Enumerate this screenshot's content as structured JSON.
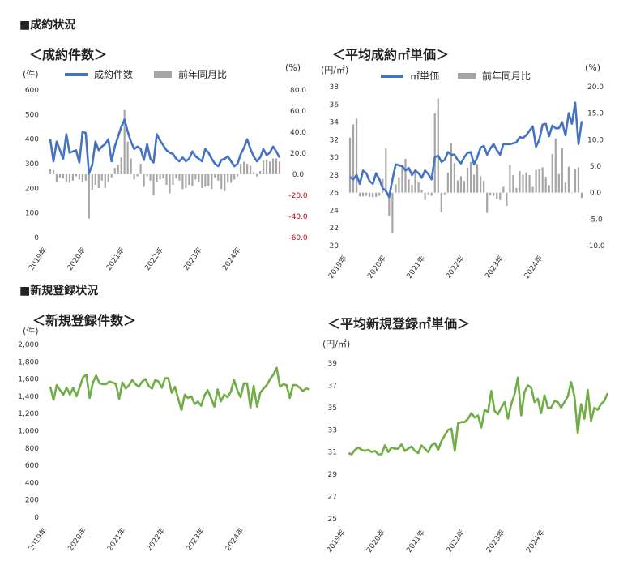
{
  "sections": {
    "s1": "■成約状況",
    "s2": "■新規登録状況"
  },
  "years": [
    "2019年",
    "2020年",
    "2021年",
    "2022年",
    "2023年",
    "2024年"
  ],
  "charts": [
    {
      "title": "＜成約件数＞",
      "unit_left": "(件)",
      "unit_right": "(%)",
      "legend_line": "成約件数",
      "legend_bar": "前年同月比",
      "left_ticks": [
        "0",
        "100",
        "200",
        "300",
        "400",
        "500",
        "600"
      ],
      "right_ticks": [
        "-60.0",
        "-40.0",
        "-20.0",
        "0.0",
        "20.0",
        "40.0",
        "60.0",
        "80.0"
      ]
    },
    {
      "title": "＜平均成約㎡単価＞",
      "unit_left": "(円/㎡)",
      "unit_right": "(%)",
      "legend_line": "㎡単価",
      "legend_bar": "前年同月比",
      "left_ticks": [
        "20",
        "22",
        "24",
        "26",
        "28",
        "30",
        "32",
        "34",
        "36",
        "38"
      ],
      "right_ticks": [
        "-10.0",
        "-5.0",
        "0.0",
        "5.0",
        "10.0",
        "15.0",
        "20.0"
      ]
    },
    {
      "title": "＜新規登録件数＞",
      "unit_left": "(件)",
      "left_ticks": [
        "0",
        "200",
        "400",
        "600",
        "800",
        "1,000",
        "1,200",
        "1,400",
        "1,600",
        "1,800",
        "2,000"
      ]
    },
    {
      "title": "＜平均新規登録㎡単価＞",
      "unit_left": "(円/㎡)",
      "left_ticks": [
        "25",
        "27",
        "29",
        "31",
        "33",
        "35",
        "37",
        "39"
      ]
    }
  ],
  "chart_data": [
    {
      "type": "bar",
      "title": "成約件数",
      "colors": {
        "line": "#4472c4",
        "bar": "#a6a6a6"
      },
      "ylim": [
        0,
        600
      ],
      "y2lim": [
        -60,
        80
      ],
      "series": [
        {
          "name": "成約件数",
          "axis": "left",
          "type": "line",
          "values": [
            400,
            310,
            390,
            355,
            320,
            420,
            345,
            350,
            355,
            305,
            430,
            425,
            260,
            295,
            390,
            355,
            370,
            380,
            400,
            310,
            370,
            410,
            450,
            480,
            430,
            390,
            360,
            370,
            360,
            315,
            380,
            320,
            305,
            420,
            395,
            375,
            355,
            345,
            340,
            320,
            310,
            325,
            310,
            320,
            350,
            330,
            320,
            310,
            360,
            345,
            320,
            300,
            290,
            315,
            320,
            330,
            310,
            290,
            300,
            340,
            365,
            400,
            360,
            330,
            310,
            325,
            360,
            335,
            345,
            370,
            350,
            325
          ]
        },
        {
          "name": "前年同月比",
          "axis": "right",
          "type": "bar",
          "values": [
            5,
            4,
            -7,
            -3,
            -4,
            -7,
            -8,
            -6,
            -2,
            -5,
            -7,
            -6,
            -42,
            -15,
            -10,
            -13,
            -6,
            -13,
            -7,
            -3,
            6,
            9,
            16,
            61,
            31,
            15,
            -5,
            -2,
            10,
            -12,
            -2,
            -6,
            -20,
            -7,
            -5,
            -4,
            -10,
            -18,
            -10,
            -4,
            -6,
            -14,
            -13,
            -10,
            -11,
            -5,
            -7,
            -13,
            -12,
            -11,
            -14,
            -3,
            -6,
            -14,
            -16,
            -8,
            -8,
            -5,
            -2,
            10,
            12,
            10,
            8,
            2,
            -2,
            3,
            13,
            14,
            12,
            15,
            15,
            12
          ]
        }
      ],
      "legend": "top"
    },
    {
      "type": "bar",
      "title": "㎡単価",
      "colors": {
        "line": "#4472c4",
        "bar": "#a6a6a6"
      },
      "ylim": [
        20,
        38
      ],
      "y2lim": [
        -10,
        20
      ],
      "series": [
        {
          "name": "㎡単価",
          "axis": "left",
          "type": "line",
          "values": [
            27.8,
            27.5,
            28.0,
            27.0,
            28.5,
            28.2,
            27.3,
            27.0,
            28.2,
            27.5,
            26.5,
            26.2,
            25.5,
            27.5,
            29.2,
            29.1,
            29.0,
            28.5,
            28.8,
            28.0,
            28.5,
            28.2,
            27.7,
            28.5,
            28.1,
            27.5,
            30.0,
            30.2,
            29.5,
            29.7,
            30.6,
            30.3,
            30.3,
            29.7,
            29.3,
            30.0,
            30.5,
            30.6,
            29.2,
            30.0,
            31.1,
            31.3,
            30.3,
            31.0,
            31.5,
            30.8,
            30.3,
            31.5,
            31.5,
            31.5,
            31.6,
            31.7,
            32.3,
            32.2,
            32.5,
            33.0,
            33.5,
            31.2,
            32.0,
            33.7,
            33.8,
            32.4,
            33.6,
            33.3,
            33.3,
            34.0,
            32.5,
            35.0,
            33.8,
            36.2,
            31.5,
            34.1
          ]
        },
        {
          "name": "前年同月比",
          "axis": "right",
          "type": "bar",
          "values": [
            10.4,
            12.9,
            14.0,
            -0.7,
            -0.7,
            -0.6,
            -0.8,
            -0.9,
            -0.8,
            -0.6,
            2.6,
            8.3,
            -4.4,
            -7.7,
            1.6,
            2.9,
            4.9,
            6.4,
            2.5,
            1.5,
            3.9,
            2.0,
            0.5,
            -1.4,
            -0.3,
            -0.6,
            15.0,
            17.8,
            -3.7,
            -0.3,
            3.8,
            9.3,
            5.6,
            2.3,
            3.1,
            2.2,
            4.7,
            5.8,
            3.4,
            5.4,
            3.1,
            2.2,
            -3.8,
            -0.4,
            -0.6,
            -1.2,
            -1.4,
            1.1,
            -2.5,
            5.2,
            3.3,
            0.9,
            4.1,
            3.4,
            3.8,
            3.3,
            1.1,
            4.3,
            4.4,
            4.8,
            3.0,
            1.4,
            7.3,
            10.2,
            3.5,
            8.4,
            1.9,
            4.9,
            0.0,
            4.5,
            4.8,
            -1.0
          ]
        }
      ],
      "legend": "top"
    },
    {
      "type": "line",
      "title": "新規登録件数",
      "colors": {
        "line": "#70ad47"
      },
      "ylim": [
        0,
        2000
      ],
      "series": [
        {
          "name": "",
          "values": [
            1510,
            1360,
            1530,
            1470,
            1420,
            1500,
            1420,
            1500,
            1400,
            1510,
            1620,
            1650,
            1380,
            1560,
            1640,
            1550,
            1540,
            1540,
            1570,
            1560,
            1540,
            1370,
            1560,
            1490,
            1530,
            1590,
            1540,
            1510,
            1570,
            1600,
            1520,
            1490,
            1590,
            1570,
            1500,
            1610,
            1610,
            1440,
            1510,
            1370,
            1240,
            1420,
            1380,
            1400,
            1310,
            1340,
            1290,
            1410,
            1470,
            1380,
            1280,
            1480,
            1340,
            1420,
            1390,
            1450,
            1590,
            1470,
            1390,
            1550,
            1550,
            1270,
            1520,
            1280,
            1440,
            1490,
            1530,
            1600,
            1650,
            1730,
            1510,
            1540,
            1530,
            1380,
            1530,
            1530,
            1500,
            1460,
            1490,
            1480
          ]
        }
      ],
      "legend": "none"
    },
    {
      "type": "line",
      "title": "平均新規登録㎡単価",
      "colors": {
        "line": "#70ad47"
      },
      "ylim": [
        25,
        39
      ],
      "series": [
        {
          "name": "",
          "values": [
            30.9,
            30.8,
            31.2,
            31.4,
            31.2,
            31.1,
            31.2,
            31.0,
            31.1,
            30.8,
            30.8,
            31.6,
            31.0,
            31.4,
            31.3,
            31.3,
            31.7,
            31.1,
            31.3,
            31.5,
            31.1,
            30.9,
            31.6,
            31.3,
            31.0,
            31.6,
            31.8,
            31.2,
            32.0,
            32.5,
            33.0,
            33.1,
            31.1,
            33.6,
            33.7,
            33.7,
            34.0,
            34.5,
            34.1,
            34.3,
            33.2,
            34.8,
            34.6,
            36.5,
            34.7,
            34.4,
            35.0,
            35.5,
            34.0,
            35.3,
            36.2,
            37.7,
            34.3,
            36.4,
            37.0,
            36.8,
            35.5,
            35.8,
            34.5,
            36.1,
            35.0,
            35.0,
            35.6,
            35.5,
            35.0,
            35.5,
            36.0,
            37.3,
            36.0,
            32.7,
            35.3,
            34.0,
            36.6,
            33.8,
            35.0,
            34.8,
            35.3,
            35.6,
            36.3
          ]
        }
      ],
      "legend": "none"
    }
  ]
}
